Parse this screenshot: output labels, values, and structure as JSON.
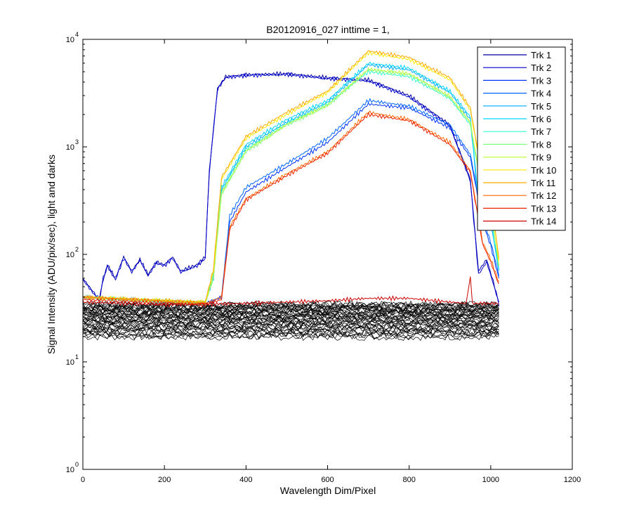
{
  "chart_data": {
    "type": "line",
    "title": "B20120916_027 inttime = 1,",
    "xlabel": "Wavelength Dim/Pixel",
    "ylabel": "Signal Intensity (ADU/pix/sec), light and darks",
    "xlim": [
      0,
      1200
    ],
    "ylim": [
      1,
      10000
    ],
    "yscale": "log",
    "grid": false,
    "legend_position": "top-right",
    "x_ticks": [
      {
        "value": 0,
        "label": "0"
      },
      {
        "value": 200,
        "label": "200"
      },
      {
        "value": 400,
        "label": "400"
      },
      {
        "value": 600,
        "label": "600"
      },
      {
        "value": 800,
        "label": "800"
      },
      {
        "value": 1000,
        "label": "1000"
      },
      {
        "value": 1200,
        "label": "1200"
      }
    ],
    "y_ticks": [
      {
        "value": 1,
        "base": "10",
        "exp": "0"
      },
      {
        "value": 10,
        "base": "10",
        "exp": "1"
      },
      {
        "value": 100,
        "base": "10",
        "exp": "2"
      },
      {
        "value": 1000,
        "base": "10",
        "exp": "3"
      },
      {
        "value": 10000,
        "base": "10",
        "exp": "4"
      }
    ],
    "series": [
      {
        "name": "Trk 1",
        "color": "#0000a8",
        "points": [
          [
            0,
            60
          ],
          [
            40,
            38
          ],
          [
            50,
            60
          ],
          [
            60,
            80
          ],
          [
            80,
            60
          ],
          [
            100,
            95
          ],
          [
            120,
            70
          ],
          [
            140,
            90
          ],
          [
            160,
            65
          ],
          [
            180,
            85
          ],
          [
            200,
            80
          ],
          [
            220,
            95
          ],
          [
            240,
            70
          ],
          [
            260,
            75
          ],
          [
            280,
            80
          ],
          [
            300,
            95
          ],
          [
            310,
            600
          ],
          [
            330,
            3500
          ],
          [
            350,
            4500
          ],
          [
            400,
            4700
          ],
          [
            500,
            4800
          ],
          [
            600,
            4400
          ],
          [
            700,
            4200
          ],
          [
            800,
            3000
          ],
          [
            900,
            1600
          ],
          [
            950,
            500
          ],
          [
            970,
            70
          ],
          [
            990,
            90
          ],
          [
            1010,
            50
          ],
          [
            1020,
            35
          ]
        ]
      },
      {
        "name": "Trk 2",
        "color": "#0000cc",
        "points": [
          [
            0,
            58
          ],
          [
            40,
            37
          ],
          [
            50,
            58
          ],
          [
            60,
            78
          ],
          [
            80,
            58
          ],
          [
            100,
            92
          ],
          [
            120,
            68
          ],
          [
            140,
            88
          ],
          [
            160,
            63
          ],
          [
            180,
            83
          ],
          [
            200,
            78
          ],
          [
            220,
            92
          ],
          [
            240,
            68
          ],
          [
            260,
            73
          ],
          [
            280,
            78
          ],
          [
            300,
            92
          ],
          [
            310,
            580
          ],
          [
            330,
            3400
          ],
          [
            350,
            4400
          ],
          [
            400,
            4600
          ],
          [
            500,
            4700
          ],
          [
            600,
            4300
          ],
          [
            700,
            4100
          ],
          [
            800,
            2900
          ],
          [
            900,
            1550
          ],
          [
            950,
            480
          ],
          [
            970,
            65
          ],
          [
            990,
            85
          ],
          [
            1010,
            48
          ],
          [
            1020,
            34
          ]
        ]
      },
      {
        "name": "Trk 3",
        "color": "#0033ff",
        "points": [
          [
            0,
            40
          ],
          [
            300,
            35
          ],
          [
            340,
            40
          ],
          [
            360,
            200
          ],
          [
            400,
            380
          ],
          [
            500,
            650
          ],
          [
            600,
            1100
          ],
          [
            700,
            2500
          ],
          [
            800,
            2300
          ],
          [
            900,
            1500
          ],
          [
            950,
            800
          ],
          [
            980,
            200
          ],
          [
            1000,
            120
          ],
          [
            1020,
            60
          ]
        ]
      },
      {
        "name": "Trk 4",
        "color": "#0066ff",
        "points": [
          [
            0,
            40
          ],
          [
            300,
            35
          ],
          [
            340,
            40
          ],
          [
            360,
            230
          ],
          [
            400,
            420
          ],
          [
            500,
            700
          ],
          [
            600,
            1200
          ],
          [
            700,
            2700
          ],
          [
            800,
            2400
          ],
          [
            900,
            1600
          ],
          [
            950,
            850
          ],
          [
            980,
            220
          ],
          [
            1000,
            130
          ],
          [
            1020,
            65
          ]
        ]
      },
      {
        "name": "Trk 5",
        "color": "#00aaff",
        "points": [
          [
            0,
            40
          ],
          [
            300,
            35
          ],
          [
            320,
            60
          ],
          [
            340,
            400
          ],
          [
            400,
            1000
          ],
          [
            500,
            1700
          ],
          [
            600,
            2600
          ],
          [
            700,
            5800
          ],
          [
            800,
            5200
          ],
          [
            900,
            3200
          ],
          [
            950,
            1800
          ],
          [
            970,
            300
          ],
          [
            1000,
            200
          ],
          [
            1020,
            70
          ]
        ]
      },
      {
        "name": "Trk 6",
        "color": "#00d4ff",
        "points": [
          [
            0,
            40
          ],
          [
            300,
            35
          ],
          [
            320,
            65
          ],
          [
            340,
            420
          ],
          [
            400,
            1050
          ],
          [
            500,
            1800
          ],
          [
            600,
            2700
          ],
          [
            700,
            6000
          ],
          [
            800,
            5400
          ],
          [
            900,
            3300
          ],
          [
            950,
            1900
          ],
          [
            970,
            320
          ],
          [
            1000,
            210
          ],
          [
            1020,
            72
          ]
        ]
      },
      {
        "name": "Trk 7",
        "color": "#33ffd0",
        "points": [
          [
            0,
            40
          ],
          [
            300,
            35
          ],
          [
            320,
            62
          ],
          [
            340,
            380
          ],
          [
            400,
            950
          ],
          [
            500,
            1650
          ],
          [
            600,
            2500
          ],
          [
            700,
            5000
          ],
          [
            800,
            4500
          ],
          [
            900,
            2800
          ],
          [
            950,
            1600
          ],
          [
            980,
            350
          ],
          [
            1000,
            250
          ],
          [
            1020,
            75
          ]
        ]
      },
      {
        "name": "Trk 8",
        "color": "#7fff80",
        "points": [
          [
            0,
            40
          ],
          [
            300,
            35
          ],
          [
            320,
            60
          ],
          [
            340,
            360
          ],
          [
            400,
            900
          ],
          [
            500,
            1600
          ],
          [
            600,
            2400
          ],
          [
            700,
            5200
          ],
          [
            800,
            4700
          ],
          [
            900,
            2900
          ],
          [
            950,
            1650
          ],
          [
            980,
            360
          ],
          [
            1000,
            260
          ],
          [
            1020,
            78
          ]
        ]
      },
      {
        "name": "Trk 9",
        "color": "#c0ff40",
        "points": [
          [
            0,
            40
          ],
          [
            300,
            35
          ],
          [
            320,
            62
          ],
          [
            340,
            370
          ],
          [
            400,
            920
          ],
          [
            500,
            1620
          ],
          [
            600,
            2450
          ],
          [
            700,
            5300
          ],
          [
            800,
            4800
          ],
          [
            900,
            2950
          ],
          [
            950,
            1700
          ],
          [
            980,
            370
          ],
          [
            1000,
            270
          ],
          [
            1020,
            80
          ]
        ]
      },
      {
        "name": "Trk 10",
        "color": "#ffee00",
        "points": [
          [
            0,
            40
          ],
          [
            300,
            36
          ],
          [
            320,
            70
          ],
          [
            340,
            500
          ],
          [
            400,
            1200
          ],
          [
            500,
            2000
          ],
          [
            600,
            3200
          ],
          [
            700,
            7500
          ],
          [
            800,
            6500
          ],
          [
            900,
            4200
          ],
          [
            950,
            2200
          ],
          [
            980,
            500
          ],
          [
            1000,
            350
          ],
          [
            1020,
            90
          ]
        ]
      },
      {
        "name": "Trk 11",
        "color": "#ffaa00",
        "points": [
          [
            0,
            40
          ],
          [
            300,
            36
          ],
          [
            320,
            72
          ],
          [
            340,
            520
          ],
          [
            400,
            1250
          ],
          [
            500,
            2100
          ],
          [
            600,
            3300
          ],
          [
            700,
            7800
          ],
          [
            800,
            6800
          ],
          [
            900,
            4400
          ],
          [
            950,
            2300
          ],
          [
            980,
            520
          ],
          [
            1000,
            360
          ],
          [
            1020,
            92
          ]
        ]
      },
      {
        "name": "Trk 12",
        "color": "#ff6600",
        "points": [
          [
            0,
            40
          ],
          [
            300,
            35
          ],
          [
            340,
            40
          ],
          [
            360,
            180
          ],
          [
            400,
            330
          ],
          [
            500,
            560
          ],
          [
            600,
            900
          ],
          [
            700,
            2100
          ],
          [
            800,
            1800
          ],
          [
            900,
            1100
          ],
          [
            950,
            600
          ],
          [
            980,
            130
          ],
          [
            1000,
            90
          ],
          [
            1020,
            55
          ]
        ]
      },
      {
        "name": "Trk 13",
        "color": "#ee2200",
        "points": [
          [
            0,
            38
          ],
          [
            300,
            34
          ],
          [
            340,
            38
          ],
          [
            360,
            170
          ],
          [
            400,
            320
          ],
          [
            500,
            540
          ],
          [
            600,
            870
          ],
          [
            700,
            2000
          ],
          [
            800,
            1750
          ],
          [
            900,
            1050
          ],
          [
            950,
            580
          ],
          [
            980,
            125
          ],
          [
            1000,
            85
          ],
          [
            1020,
            52
          ]
        ]
      },
      {
        "name": "Trk 14",
        "color": "#cc0000",
        "points": [
          [
            0,
            36
          ],
          [
            200,
            34
          ],
          [
            400,
            35
          ],
          [
            600,
            37
          ],
          [
            700,
            39
          ],
          [
            800,
            39
          ],
          [
            900,
            36
          ],
          [
            940,
            35
          ],
          [
            950,
            63
          ],
          [
            955,
            35
          ],
          [
            1020,
            35
          ]
        ]
      }
    ]
  }
}
